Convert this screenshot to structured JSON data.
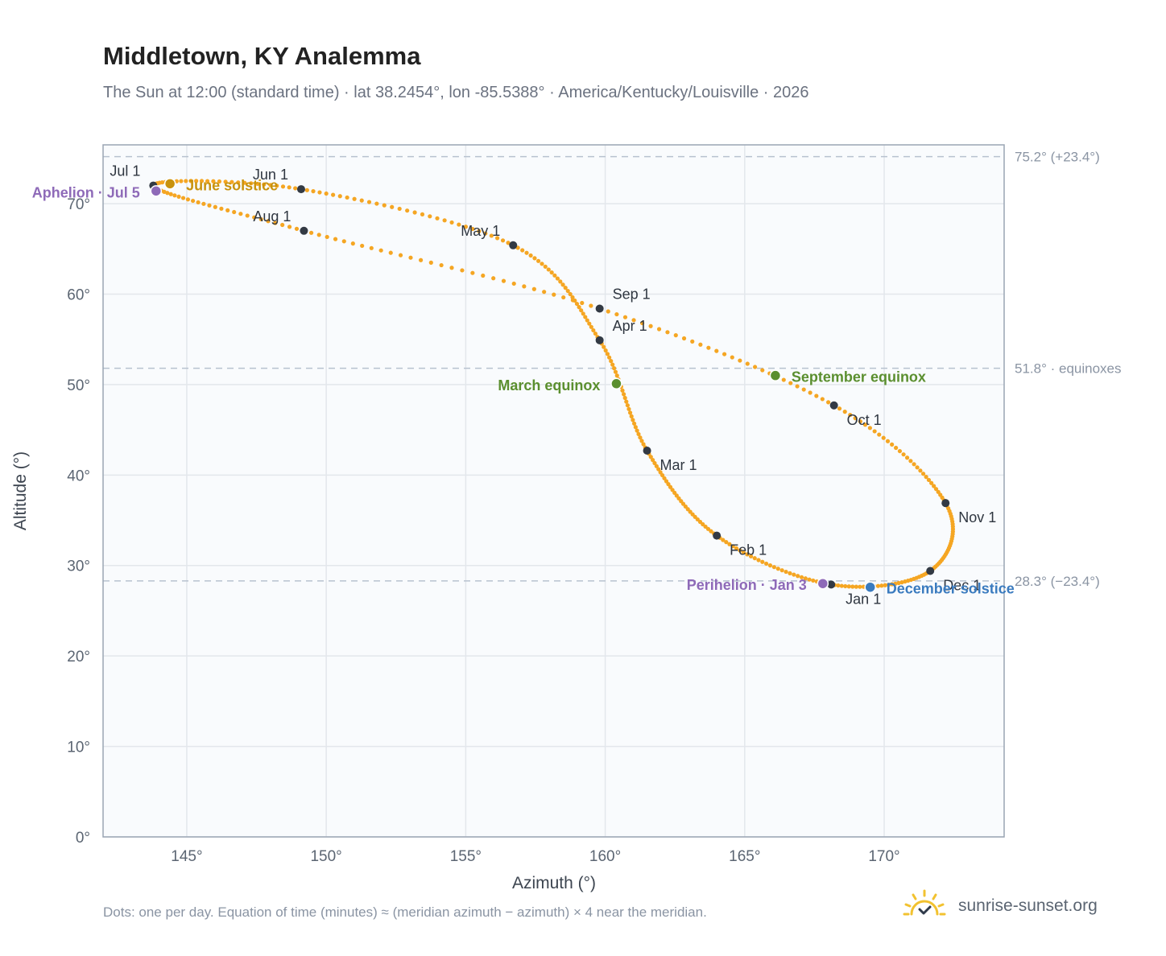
{
  "header": {
    "title": "Middletown, KY Analemma",
    "subtitle": "The Sun at 12:00 (standard time) · lat 38.2454°, lon -85.5388° · America/Kentucky/Louisville · 2026"
  },
  "footer": {
    "note": "Dots: one per day. Equation of time (minutes) ≈ (meridian azimuth − azimuth) × 4 near the meridian.",
    "brand": "sunrise-sunset.org"
  },
  "icons": {
    "brand": "sun-logo-icon"
  },
  "colors": {
    "analemma": "#f5a623",
    "month_marker": "#333a44",
    "solstice_june": "#c8920d",
    "solstice_december": "#3a7bbf",
    "equinox": "#5b8f2f",
    "apsis": "#8e6ab8",
    "reference_line": "#b8c2cf",
    "plot_background": "#f9fbfd",
    "grid": "#e3e7ec",
    "frame": "#9aa5b4"
  },
  "chart_data": {
    "type": "scatter",
    "title": "Middletown, KY Analemma",
    "xlabel": "Azimuth (°)",
    "ylabel": "Altitude (°)",
    "xlim": [
      142,
      174.3
    ],
    "ylim": [
      0,
      76.5
    ],
    "x_ticks": [
      145,
      150,
      155,
      160,
      165,
      170
    ],
    "x_tick_labels": [
      "145°",
      "150°",
      "155°",
      "160°",
      "165°",
      "170°"
    ],
    "y_ticks": [
      0,
      10,
      20,
      30,
      40,
      50,
      60,
      70
    ],
    "y_tick_labels": [
      "0°",
      "10°",
      "20°",
      "30°",
      "40°",
      "50°",
      "60°",
      "70°"
    ],
    "grid": true,
    "series": [
      {
        "points": [
          {
            "x": 168.1,
            "y": 27.9
          },
          {
            "x": 164.0,
            "y": 33.3
          },
          {
            "x": 161.5,
            "y": 42.7
          },
          {
            "x": 159.8,
            "y": 54.9
          },
          {
            "x": 156.7,
            "y": 65.4
          },
          {
            "x": 149.1,
            "y": 71.6
          },
          {
            "x": 143.8,
            "y": 72.0
          },
          {
            "x": 149.2,
            "y": 67.0
          },
          {
            "x": 159.8,
            "y": 58.4
          },
          {
            "x": 168.2,
            "y": 47.7
          },
          {
            "x": 172.2,
            "y": 36.9
          },
          {
            "x": 171.65,
            "y": 29.4
          },
          {
            "x": 168.1,
            "y": 27.9
          }
        ]
      }
    ],
    "month_markers": [
      {
        "label": "Jan 1",
        "x": 168.1,
        "y": 27.9
      },
      {
        "label": "Feb 1",
        "x": 164.0,
        "y": 33.3
      },
      {
        "label": "Mar 1",
        "x": 161.5,
        "y": 42.7
      },
      {
        "label": "Apr 1",
        "x": 159.8,
        "y": 54.9
      },
      {
        "label": "May 1",
        "x": 156.7,
        "y": 65.4
      },
      {
        "label": "Jun 1",
        "x": 149.1,
        "y": 71.6
      },
      {
        "label": "Jul 1",
        "x": 143.8,
        "y": 72.0
      },
      {
        "label": "Aug 1",
        "x": 149.2,
        "y": 67.0
      },
      {
        "label": "Sep 1",
        "x": 159.8,
        "y": 58.4
      },
      {
        "label": "Oct 1",
        "x": 168.2,
        "y": 47.7
      },
      {
        "label": "Nov 1",
        "x": 172.2,
        "y": 36.9
      },
      {
        "label": "Dec 1",
        "x": 171.65,
        "y": 29.4
      }
    ],
    "events": [
      {
        "label": "June solstice",
        "x": 144.4,
        "y": 72.2,
        "color": "#c8920d"
      },
      {
        "label": "December solstice",
        "x": 169.5,
        "y": 27.6,
        "color": "#3a7bbf"
      },
      {
        "label": "March equinox",
        "x": 160.4,
        "y": 50.1,
        "color": "#5b8f2f"
      },
      {
        "label": "September equinox",
        "x": 166.1,
        "y": 51.0,
        "color": "#5b8f2f"
      },
      {
        "label": "Aphelion · Jul 5",
        "x": 143.9,
        "y": 71.4,
        "color": "#8e6ab8"
      },
      {
        "label": "Perihelion · Jan 3",
        "x": 167.8,
        "y": 28.0,
        "color": "#8e6ab8"
      }
    ],
    "reference_lines": [
      {
        "y": 75.2,
        "label": "75.2° (+23.4°)"
      },
      {
        "y": 51.8,
        "label": "51.8° · equinoxes"
      },
      {
        "y": 28.3,
        "label": "28.3° (−23.4°)"
      }
    ]
  }
}
